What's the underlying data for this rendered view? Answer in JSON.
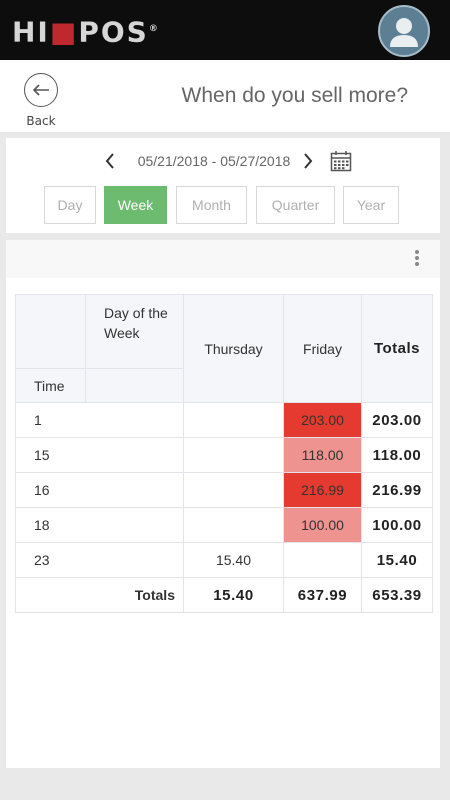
{
  "app": {
    "logo_text_left": "HI",
    "logo_mark": "■",
    "logo_text_right": "POS",
    "logo_reg": "®",
    "avatar_icon": "user-avatar-icon"
  },
  "header": {
    "back_label": "Back",
    "title": "When do you sell more?"
  },
  "date_nav": {
    "range": "05/21/2018 - 05/27/2018"
  },
  "periods": {
    "day": "Day",
    "week": "Week",
    "month": "Month",
    "quarter": "Quarter",
    "year": "Year",
    "selected": "Week"
  },
  "table": {
    "header": {
      "day_of_week": "Day of the Week",
      "time": "Time",
      "thursday": "Thursday",
      "friday": "Friday",
      "totals": "Totals"
    },
    "rows": [
      {
        "time": "1",
        "thursday": "",
        "friday": "203.00",
        "total": "203.00"
      },
      {
        "time": "15",
        "thursday": "",
        "friday": "118.00",
        "total": "118.00"
      },
      {
        "time": "16",
        "thursday": "",
        "friday": "216.99",
        "total": "216.99"
      },
      {
        "time": "18",
        "thursday": "",
        "friday": "100.00",
        "total": "100.00"
      },
      {
        "time": "23",
        "thursday": "15.40",
        "friday": "",
        "total": "15.40"
      }
    ],
    "totals": {
      "label": "Totals",
      "thursday": "15.40",
      "friday": "637.99",
      "grand": "653.39"
    },
    "heat_colors": {
      "high": "#e53a2f",
      "low": "#ef9390"
    }
  },
  "colors": {
    "accent_green": "#6dbb6f",
    "topbar": "#0d0d0d",
    "brand_red": "#c0282f"
  }
}
